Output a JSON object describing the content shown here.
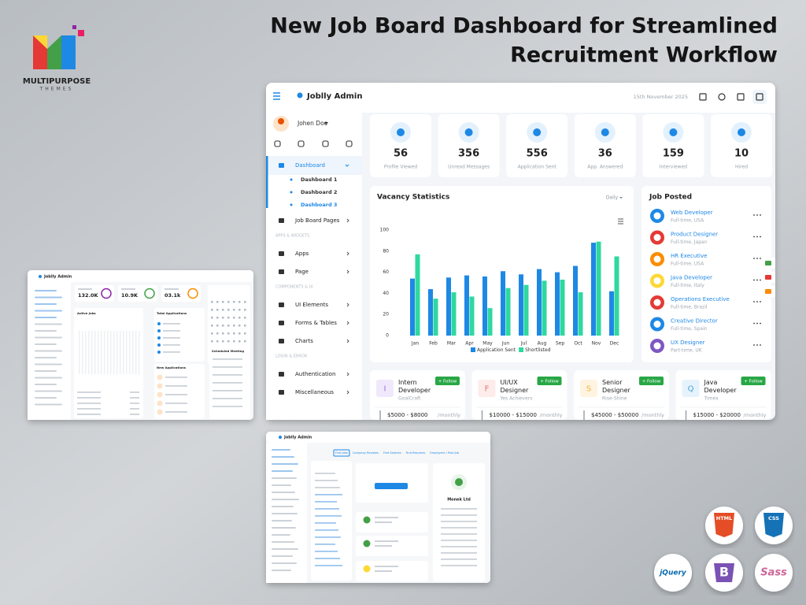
{
  "headline": [
    "New Job Board Dashboard for Streamlined",
    "Recruitment Workflow"
  ],
  "brand": {
    "name": "MULTIPURPOSE",
    "sub": "THEMES"
  },
  "dashboard": {
    "app_name": "Joblly Admin",
    "date": "15th November 2025",
    "user": "Johen Doe",
    "menu": [
      {
        "label": "Dashboard"
      },
      {
        "child": "Dashboard 1"
      },
      {
        "child": "Dashboard 2"
      },
      {
        "child": "Dashboard 3"
      },
      {
        "label": "Job Board Pages"
      },
      {
        "section": "APPS & WIDGETS"
      },
      {
        "label": "Apps"
      },
      {
        "label": "Page"
      },
      {
        "section": "COMPONENTS & UI"
      },
      {
        "label": "UI Elements"
      },
      {
        "label": "Forms & Tables"
      },
      {
        "label": "Charts"
      },
      {
        "section": "LOGIN & ERROR"
      },
      {
        "label": "Authentication"
      },
      {
        "label": "Miscellaneous"
      }
    ],
    "stats": [
      {
        "value": 56,
        "label": "Profile Viewed"
      },
      {
        "value": 356,
        "label": "Unread Messages"
      },
      {
        "value": 556,
        "label": "Application Sent"
      },
      {
        "value": 36,
        "label": "App. Answered"
      },
      {
        "value": 159,
        "label": "Interviewed"
      },
      {
        "value": 10,
        "label": "Hired"
      }
    ],
    "chart_data": {
      "type": "bar",
      "title": "Vacancy Statistics",
      "filter": "Daily",
      "categories": [
        "Jan",
        "Feb",
        "Mar",
        "Apr",
        "May",
        "Jun",
        "Jul",
        "Aug",
        "Sep",
        "Oct",
        "Nov",
        "Dec"
      ],
      "series": [
        {
          "name": "Application Sent",
          "color": "#1e88e5",
          "values": [
            54,
            44,
            55,
            57,
            56,
            61,
            58,
            63,
            60,
            66,
            88,
            42
          ]
        },
        {
          "name": "Shortlisted",
          "color": "#2ed8a0",
          "values": [
            77,
            35,
            41,
            37,
            26,
            45,
            48,
            52,
            53,
            41,
            89,
            75
          ]
        }
      ],
      "ylim": [
        0,
        100
      ],
      "yticks": [
        0,
        20,
        40,
        60,
        80,
        100
      ],
      "grid": false
    },
    "job_posted": {
      "title": "Job Posted",
      "items": [
        {
          "title": "Web Developer",
          "meta": "Full-time, USA"
        },
        {
          "title": "Product Designer",
          "meta": "Full-time, Japan"
        },
        {
          "title": "HR Executive",
          "meta": "Full-time, USA"
        },
        {
          "title": "Java Developer",
          "meta": "Full-time, Italy"
        },
        {
          "title": "Operations Executive",
          "meta": "Full-time, Brazil"
        },
        {
          "title": "Creative Director",
          "meta": "Full-time, Spain"
        },
        {
          "title": "UX Designer",
          "meta": "Part-time, UK"
        }
      ]
    },
    "openings": [
      {
        "letter": "I",
        "title": "Intern Developer",
        "company": "GoalCraft",
        "button": "+ Follow",
        "salary": "$5000 - $8000",
        "period": "/monthly"
      },
      {
        "letter": "F",
        "title": "UI/UX Designer",
        "company": "Yes Achievers",
        "button": "+ Follow",
        "salary": "$10000 - $15000",
        "period": "/monthly"
      },
      {
        "letter": "S",
        "title": "Senior Designer",
        "company": "Rise-Shine",
        "button": "+ Follow",
        "salary": "$45000 - $50000",
        "period": "/monthly"
      },
      {
        "letter": "Q",
        "title": "Java Developer",
        "company": "Timex",
        "button": "+ Follow",
        "salary": "$15000 - $20000",
        "period": "/monthly"
      }
    ]
  },
  "mini_left": {
    "app_name": "Joblly Admin",
    "stats": [
      "132.0K",
      "10.9K",
      "03.1k"
    ],
    "panels": [
      "Active Jobs",
      "Total Applications",
      "New Applications",
      "Scheduled Meeting"
    ]
  },
  "mini_bottom": {
    "app_name": "Joblly Admin",
    "tabs": [
      "Find Jobs",
      "Company Reviews",
      "Find Salaries",
      "Find Resumes",
      "Employers / Post Job"
    ],
    "company": "Monek Ltd"
  },
  "tech": [
    "HTML",
    "CSS",
    "jQuery",
    "B",
    "Sass"
  ]
}
